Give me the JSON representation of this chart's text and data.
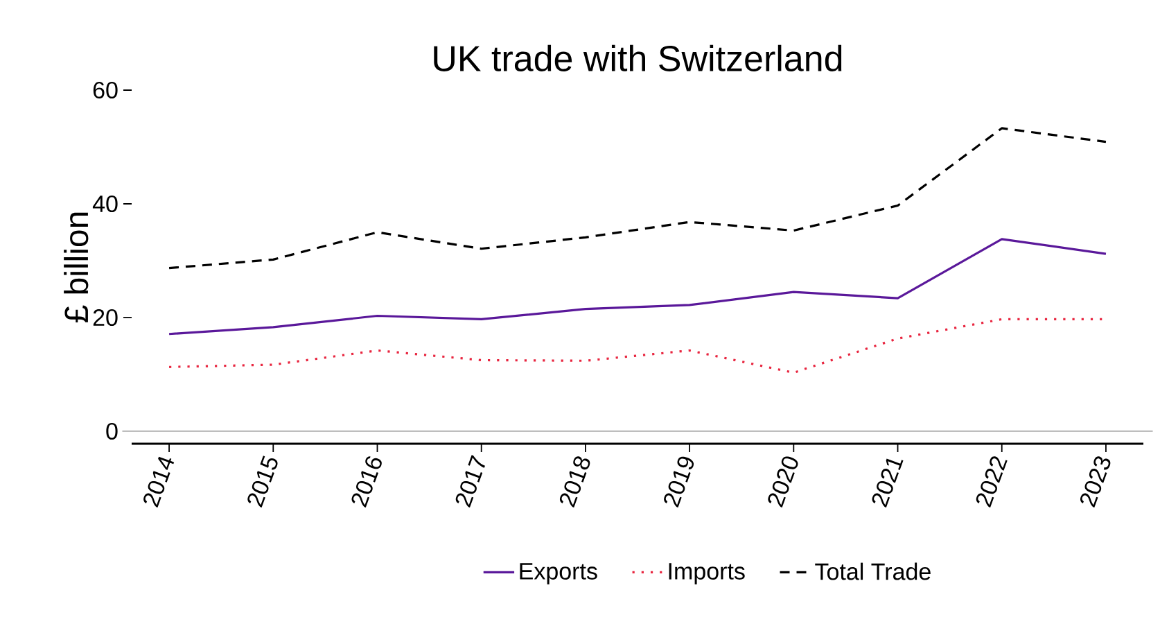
{
  "chart_data": {
    "type": "line",
    "title": "UK trade with Switzerland",
    "ylabel": "£ billion",
    "categories": [
      "2014",
      "2015",
      "2016",
      "2017",
      "2018",
      "2019",
      "2020",
      "2021",
      "2022",
      "2023"
    ],
    "series": [
      {
        "name": "Exports",
        "color": "#5a189a",
        "line_style": "solid",
        "values": [
          17.1,
          18.3,
          20.3,
          19.7,
          21.5,
          22.2,
          24.5,
          23.4,
          33.8,
          31.2
        ]
      },
      {
        "name": "Imports",
        "color": "#e8253f",
        "line_style": "dotted",
        "values": [
          11.3,
          11.7,
          14.2,
          12.5,
          12.4,
          14.2,
          10.3,
          16.3,
          19.7,
          19.7
        ]
      },
      {
        "name": "Total Trade",
        "color": "#000000",
        "line_style": "dashed",
        "values": [
          28.7,
          30.2,
          35.0,
          32.1,
          34.1,
          36.8,
          35.3,
          39.7,
          53.3,
          50.9
        ]
      }
    ],
    "ylim": [
      -2.2,
      60
    ],
    "yticks": [
      0,
      20,
      40,
      60
    ],
    "ref_lines": [
      {
        "axis": "y",
        "value": 0,
        "color": "#bebebe"
      }
    ],
    "grid": false,
    "legend": "bottom",
    "marker": "none"
  }
}
